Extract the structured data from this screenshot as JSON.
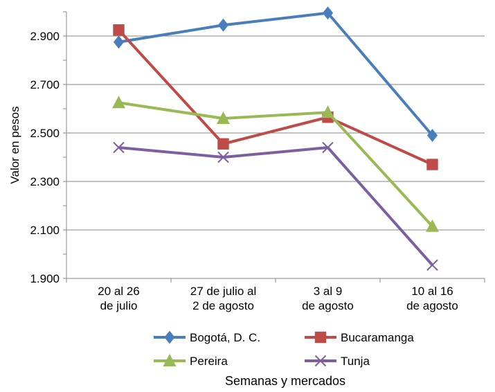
{
  "chart_data": {
    "type": "line",
    "xlabel": "Semanas y mercados",
    "ylabel": "Valor en pesos",
    "categories": [
      [
        "20 al 26",
        "de julio"
      ],
      [
        "27  de julio al",
        "2 de agosto"
      ],
      [
        "3 al 9",
        "de agosto"
      ],
      [
        "10 al 16",
        "de agosto"
      ]
    ],
    "ylim": [
      1900,
      3000
    ],
    "yticks": [
      1900,
      2100,
      2300,
      2500,
      2700,
      2900
    ],
    "ytick_labels": [
      "1.900",
      "2.100",
      "2.300",
      "2.500",
      "2.700",
      "2.900"
    ],
    "grid": true,
    "legend_position": "bottom",
    "series": [
      {
        "name": "Bogotá, D. C.",
        "color": "#4A7EBB",
        "marker": "diamond",
        "values": [
          2875,
          2945,
          2995,
          2490
        ]
      },
      {
        "name": "Bucaramanga",
        "color": "#BE4B48",
        "marker": "square",
        "values": [
          2925,
          2455,
          2565,
          2370
        ]
      },
      {
        "name": "Pereira",
        "color": "#98B954",
        "marker": "triangle",
        "values": [
          2625,
          2560,
          2585,
          2115
        ]
      },
      {
        "name": "Tunja",
        "color": "#7D5FA0",
        "marker": "x",
        "values": [
          2440,
          2400,
          2440,
          1955
        ]
      }
    ]
  }
}
